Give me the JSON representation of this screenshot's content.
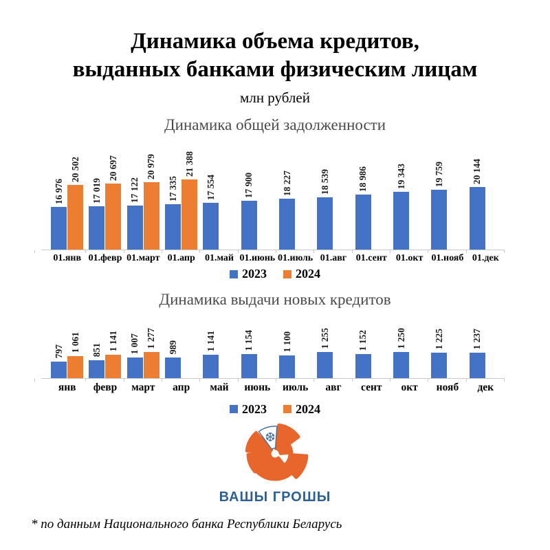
{
  "header": {
    "line1": "Динамика объема кредитов,",
    "line2": "выданных банками физическим лицам",
    "unit": "млн рублей"
  },
  "footer": {
    "note": "* по данным Национального банка Республики Беларусь"
  },
  "logo": {
    "text": "ВАШЫ ГРОШЫ",
    "icon": "segmented-pie-swirl-with-snowflake"
  },
  "colors": {
    "blue": "#4472C4",
    "orange": "#ED7D31",
    "axis": "#C9C9C9",
    "chart_title_gray": "#4A4A4A",
    "logo_orange": "#E8662B",
    "logo_blue": "#2D6094",
    "snowflake_blue": "#44709D"
  },
  "chart_data": [
    {
      "type": "bar",
      "title": "Динамика общей задолженности",
      "categories": [
        "01.янв",
        "01.февр",
        "01.март",
        "01.апр",
        "01.май",
        "01.июнь",
        "01.июль",
        "01.авг",
        "01.сент",
        "01.окт",
        "01.нояб",
        "01.дек"
      ],
      "series": [
        {
          "name": "2023",
          "values": [
            16976,
            17019,
            17122,
            17335,
            17554,
            17900,
            18227,
            18539,
            18986,
            19343,
            19759,
            20144
          ]
        },
        {
          "name": "2024",
          "values": [
            20502,
            20697,
            20979,
            21388,
            null,
            null,
            null,
            null,
            null,
            null,
            null,
            null
          ]
        }
      ],
      "ylim": [
        10000,
        27000
      ],
      "grid": false,
      "legend_position": "bottom",
      "data_labels": "rotated-90-outside-end"
    },
    {
      "type": "bar",
      "title": "Динамика выдачи новых кредитов",
      "categories": [
        "янв",
        "февр",
        "март",
        "апр",
        "май",
        "июнь",
        "июль",
        "авг",
        "сент",
        "окт",
        "нояб",
        "дек"
      ],
      "series": [
        {
          "name": "2023",
          "values": [
            797,
            851,
            1007,
            989,
            1141,
            1154,
            1100,
            1255,
            1152,
            1250,
            1225,
            1237
          ]
        },
        {
          "name": "2024",
          "values": [
            1061,
            1141,
            1277,
            null,
            null,
            null,
            null,
            null,
            null,
            null,
            null,
            null
          ]
        }
      ],
      "ylim": [
        0,
        3200
      ],
      "grid": false,
      "legend_position": "bottom",
      "data_labels": "rotated-90-outside-end"
    }
  ]
}
